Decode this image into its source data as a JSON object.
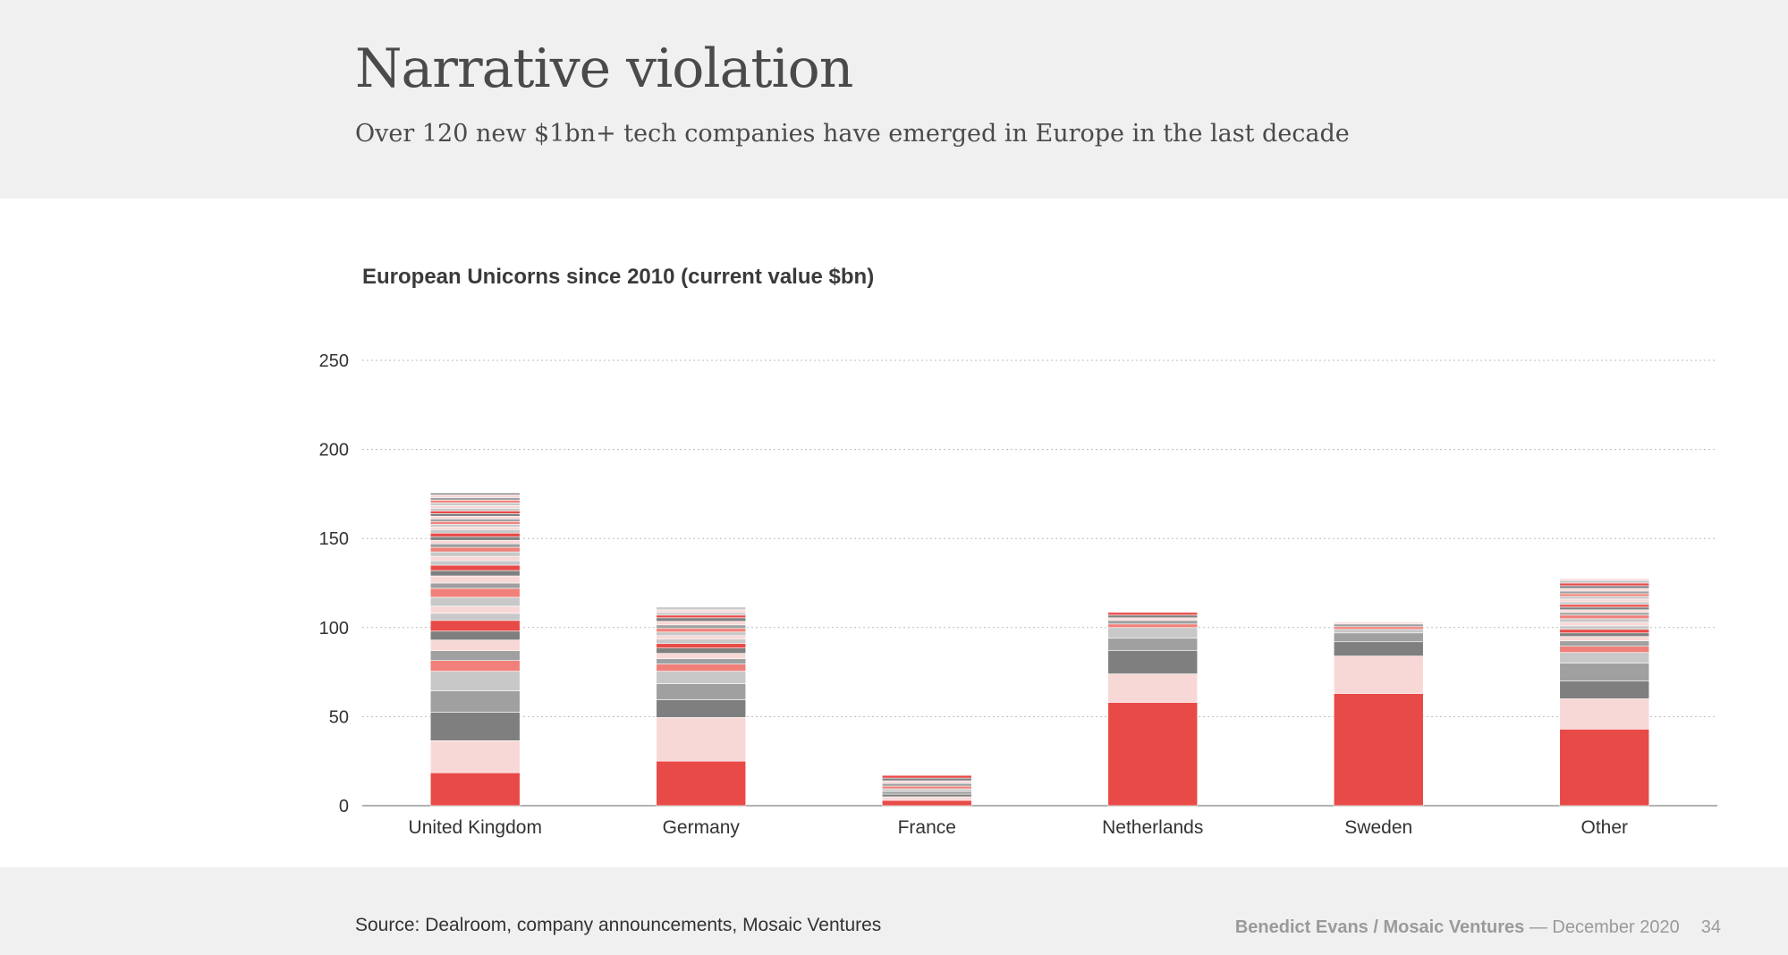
{
  "header": {
    "title": "Narrative violation",
    "subtitle": "Over 120 new $1bn+ tech companies have emerged in Europe in the last decade"
  },
  "footer": {
    "source": "Source: Dealroom, company announcements, Mosaic Ventures",
    "author": "Benedict Evans / Mosaic Ventures",
    "date": "— December 2020",
    "page": "34"
  },
  "colors": {
    "red": "#e84a47",
    "pink": "#f8d8d7",
    "dark_gray": "#7f7f7f",
    "gray": "#a0a0a0",
    "light_gray": "#c8c8c8",
    "salmon": "#f08079",
    "axis": "#999999",
    "grid": "#bbbbbb"
  },
  "chart_data": {
    "type": "bar",
    "stacked": true,
    "title": "European Unicorns since 2010 (current value $bn)",
    "xlabel": "",
    "ylabel": "",
    "ylim": [
      0,
      250
    ],
    "yticks": [
      0,
      50,
      100,
      150,
      200,
      250
    ],
    "grid": true,
    "legend": "none",
    "categories": [
      "United Kingdom",
      "Germany",
      "France",
      "Netherlands",
      "Sweden",
      "Other"
    ],
    "stacks": [
      [
        18.5,
        18,
        16,
        12,
        11,
        6,
        5.5,
        6,
        5,
        6,
        4,
        4,
        5,
        5,
        3,
        4,
        3,
        3,
        2.5,
        2.5,
        2.5,
        2.5,
        2,
        2,
        2,
        2,
        2,
        1.5,
        1.5,
        1.5,
        1.5,
        1.5,
        1.5,
        1.5,
        1.5,
        1.5,
        1.5,
        1.5,
        1.5,
        1.5,
        1
      ],
      [
        25,
        24.5,
        10,
        9,
        7,
        4,
        3,
        3,
        3,
        2.5,
        2.5,
        2,
        2,
        2,
        2,
        2,
        2,
        1.5,
        1.5,
        1.5,
        1.5
      ],
      [
        3,
        2,
        1.5,
        1.5,
        1.5,
        1.5,
        1.5,
        1.5,
        1.5,
        1.5
      ],
      [
        58,
        16,
        13,
        7,
        6,
        2,
        2,
        1.5,
        1.5,
        1.5
      ],
      [
        63,
        21,
        8,
        5,
        2,
        1.5,
        1.5,
        1
      ],
      [
        43,
        17,
        10,
        10,
        6,
        3.5,
        3,
        2.5,
        2,
        2,
        2,
        2,
        2,
        2,
        1.5,
        1.5,
        1.5,
        1.5,
        1.5,
        1.5,
        1.5,
        1.5,
        1.5,
        1.5,
        1.5,
        1.5,
        1.5,
        1
      ]
    ]
  }
}
